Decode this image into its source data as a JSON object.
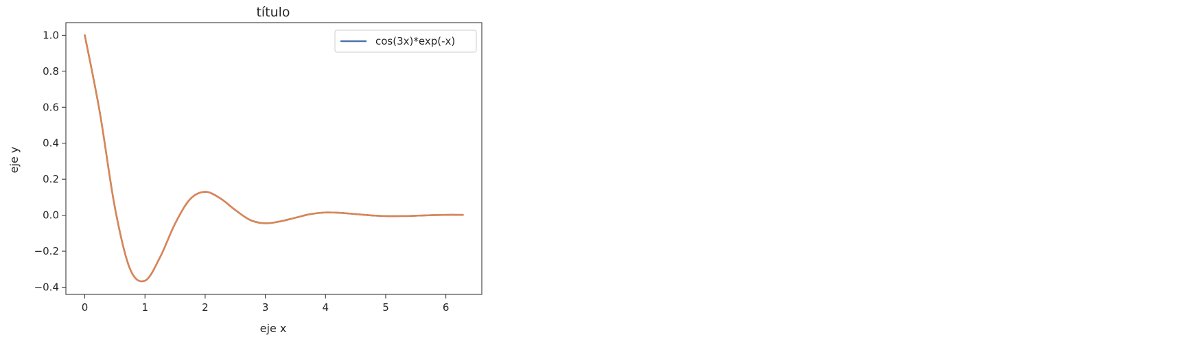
{
  "chart_data": {
    "type": "line",
    "title": "título",
    "xlabel": "eje x",
    "ylabel": "eje y",
    "xlim": [
      -0.314,
      6.597
    ],
    "ylim": [
      -0.44,
      1.07
    ],
    "xticks": [
      0,
      1,
      2,
      3,
      4,
      5,
      6
    ],
    "xtick_labels": [
      "0",
      "1",
      "2",
      "3",
      "4",
      "5",
      "6"
    ],
    "yticks": [
      -0.4,
      -0.2,
      0.0,
      0.2,
      0.4,
      0.6,
      0.8,
      1.0
    ],
    "ytick_labels": [
      "−0.4",
      "−0.2",
      "0.0",
      "0.2",
      "0.4",
      "0.6",
      "0.8",
      "1.0"
    ],
    "grid": false,
    "legend_position": "upper right",
    "series": [
      {
        "name": "cos(3x)*exp(-x)",
        "color": "#4c72b0",
        "x": [
          0.0,
          0.25,
          0.5,
          0.75,
          1.0,
          1.25,
          1.5,
          1.75,
          2.0,
          2.25,
          2.5,
          2.75,
          3.0,
          3.25,
          3.5,
          3.75,
          4.0,
          4.25,
          4.5,
          4.75,
          5.0,
          5.25,
          5.5,
          5.75,
          6.0,
          6.283
        ],
        "y": [
          1.0,
          0.571,
          0.043,
          -0.297,
          -0.364,
          -0.234,
          -0.047,
          0.089,
          0.13,
          0.094,
          0.029,
          -0.027,
          -0.045,
          -0.034,
          -0.014,
          0.006,
          0.015,
          0.013,
          0.006,
          -0.001,
          -0.005,
          -0.005,
          -0.003,
          0.0,
          0.002,
          0.002
        ]
      },
      {
        "name": "",
        "color": "#dd8452",
        "x": [
          0.0,
          0.25,
          0.5,
          0.75,
          1.0,
          1.25,
          1.5,
          1.75,
          2.0,
          2.25,
          2.5,
          2.75,
          3.0,
          3.25,
          3.5,
          3.75,
          4.0,
          4.25,
          4.5,
          4.75,
          5.0,
          5.25,
          5.5,
          5.75,
          6.0,
          6.283
        ],
        "y": [
          1.0,
          0.571,
          0.043,
          -0.297,
          -0.364,
          -0.234,
          -0.047,
          0.089,
          0.13,
          0.094,
          0.029,
          -0.027,
          -0.045,
          -0.034,
          -0.014,
          0.006,
          0.015,
          0.013,
          0.006,
          -0.001,
          -0.005,
          -0.005,
          -0.003,
          0.0,
          0.002,
          0.002
        ]
      }
    ]
  }
}
